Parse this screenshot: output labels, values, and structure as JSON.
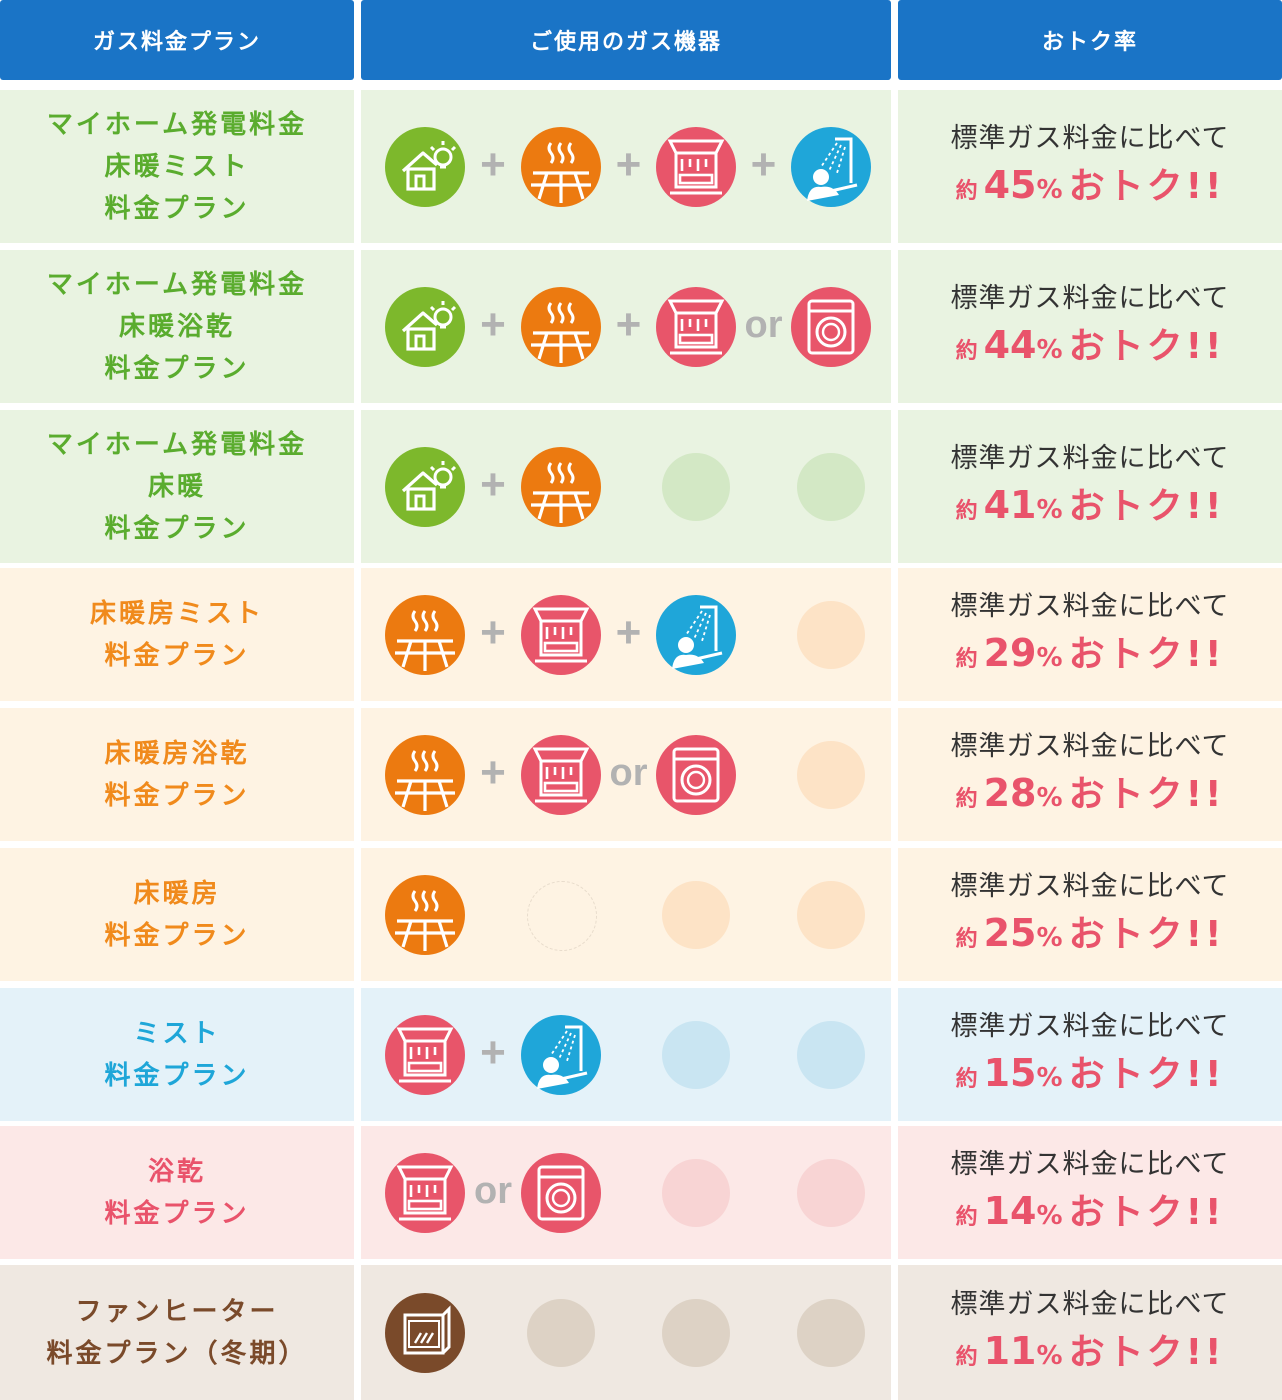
{
  "header": {
    "plan_col": "ガス料金プラン",
    "equipment_col": "ご使用のガス機器",
    "savings_col": "おトク率"
  },
  "compare_text": "標準ガス料金に比べて",
  "approx_label": "約",
  "percent_unit": "%",
  "otoku_label": "おトク!!",
  "plus_symbol": "+",
  "or_symbol": "or",
  "colors": {
    "header_bg": "#1a74c6",
    "savings_text": "#e9536b",
    "operator": "#b2b2b2",
    "icon_house": "#7db82c",
    "icon_floor_heating": "#ec7a10",
    "icon_bathroom_dryer": "#e8556a",
    "icon_mist": "#1fa6d9",
    "icon_fan_heater": "#7a4a2a"
  },
  "rows": [
    {
      "name": "マイホーム発電料金",
      "lines": [
        "マイホーム発電料金",
        "床暖ミスト",
        "料金プラン"
      ],
      "savings": "45",
      "bg": "#e9f3e1",
      "text_color": "#5aac2e",
      "placeholder": "#d3e8c5",
      "icons": [
        "house-power-icon",
        "floor-heating-icon",
        "bathroom-dryer-icon",
        "mist-sauna-icon"
      ],
      "ops": [
        "+",
        "+",
        "+"
      ]
    },
    {
      "name": "マイホーム発電料金",
      "lines": [
        "マイホーム発電料金",
        "床暖浴乾",
        "料金プラン"
      ],
      "savings": "44",
      "bg": "#e9f3e1",
      "text_color": "#5aac2e",
      "placeholder": "#d3e8c5",
      "icons": [
        "house-power-icon",
        "floor-heating-icon",
        "bathroom-dryer-icon",
        "clothes-dryer-icon"
      ],
      "ops": [
        "+",
        "+",
        "or"
      ]
    },
    {
      "name": "マイホーム発電料金",
      "lines": [
        "マイホーム発電料金",
        "床暖",
        "料金プラン"
      ],
      "savings": "41",
      "bg": "#e9f3e1",
      "text_color": "#5aac2e",
      "placeholder": "#d3e8c5",
      "icons": [
        "house-power-icon",
        "floor-heating-icon"
      ],
      "ops": [
        "+"
      ]
    },
    {
      "name": "床暖房ミスト",
      "lines": [
        "床暖房ミスト",
        "料金プラン"
      ],
      "savings": "29",
      "bg": "#fef3e3",
      "text_color": "#f08a1c",
      "placeholder": "#fde3c6",
      "icons": [
        "floor-heating-icon",
        "bathroom-dryer-icon",
        "mist-sauna-icon"
      ],
      "ops": [
        "+",
        "+"
      ]
    },
    {
      "name": "床暖房浴乾",
      "lines": [
        "床暖房浴乾",
        "料金プラン"
      ],
      "savings": "28",
      "bg": "#fef3e3",
      "text_color": "#f08a1c",
      "placeholder": "#fde3c6",
      "icons": [
        "floor-heating-icon",
        "bathroom-dryer-icon",
        "clothes-dryer-icon"
      ],
      "ops": [
        "+",
        "or"
      ]
    },
    {
      "name": "床暖房",
      "lines": [
        "床暖房",
        "料金プラン"
      ],
      "savings": "25",
      "bg": "#fef3e3",
      "text_color": "#f08a1c",
      "placeholder": "#fde3c6",
      "icons": [
        "floor-heating-icon"
      ],
      "ops": []
    },
    {
      "name": "ミスト",
      "lines": [
        "ミスト",
        "料金プラン"
      ],
      "savings": "15",
      "bg": "#e4f2f9",
      "text_color": "#1ea6d8",
      "placeholder": "#c9e5f2",
      "icons": [
        "bathroom-dryer-icon",
        "mist-sauna-icon"
      ],
      "ops": [
        "+"
      ]
    },
    {
      "name": "浴乾",
      "lines": [
        "浴乾",
        "料金プラン"
      ],
      "savings": "14",
      "bg": "#fce8e7",
      "text_color": "#e9536b",
      "placeholder": "#f8d4d4",
      "icons": [
        "bathroom-dryer-icon",
        "clothes-dryer-icon"
      ],
      "ops": [
        "or"
      ]
    },
    {
      "name": "ファンヒーター",
      "lines": [
        "ファンヒーター",
        "料金プラン（冬期）"
      ],
      "savings": "11",
      "bg": "#efe8e1",
      "text_color": "#7a4a2a",
      "placeholder": "#ddd2c5",
      "icons": [
        "fan-heater-icon"
      ],
      "ops": []
    }
  ]
}
